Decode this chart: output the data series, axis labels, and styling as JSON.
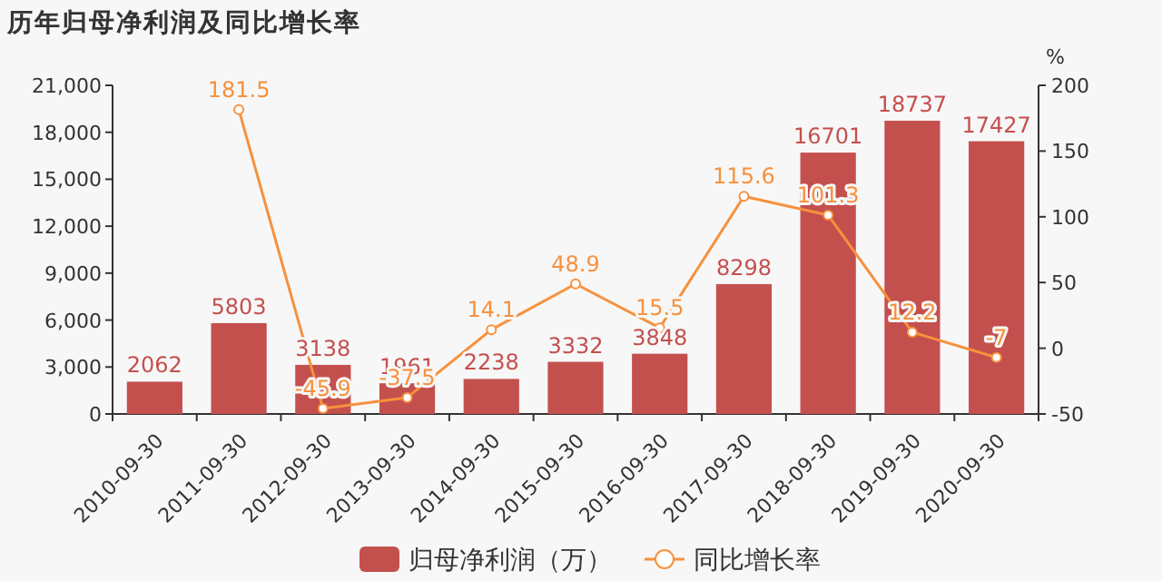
{
  "chart_data": {
    "type": "bar",
    "title": "历年归母净利润及同比增长率",
    "y2label": "%",
    "categories": [
      "2010-09-30",
      "2011-09-30",
      "2012-09-30",
      "2013-09-30",
      "2014-09-30",
      "2015-09-30",
      "2016-09-30",
      "2017-09-30",
      "2018-09-30",
      "2019-09-30",
      "2020-09-30"
    ],
    "series": [
      {
        "name": "归母净利润（万）",
        "color": "#c4504e",
        "values": [
          2062,
          5803,
          3138,
          1961,
          2238,
          3332,
          3848,
          8298,
          16701,
          18737,
          17427
        ]
      },
      {
        "name": "同比增长率",
        "type": "line",
        "axis": "y2",
        "color": "#f7913d",
        "marker": "circle",
        "values": [
          null,
          181.5,
          -45.9,
          -37.5,
          14.1,
          48.9,
          15.5,
          115.6,
          101.3,
          12.2,
          -7
        ]
      }
    ],
    "ylim": [
      0,
      21000
    ],
    "yticks": [
      {
        "value": 0,
        "label": "0"
      },
      {
        "value": 3000,
        "label": "3,000"
      },
      {
        "value": 6000,
        "label": "6,000"
      },
      {
        "value": 9000,
        "label": "9,000"
      },
      {
        "value": 12000,
        "label": "12,000"
      },
      {
        "value": 15000,
        "label": "15,000"
      },
      {
        "value": 18000,
        "label": "18,000"
      },
      {
        "value": 21000,
        "label": "21,000"
      }
    ],
    "y2lim": [
      -50,
      200
    ],
    "y2ticks": [
      -50,
      0,
      50,
      100,
      150,
      200
    ],
    "data_labels": true,
    "legend": "bottom",
    "grid": false
  }
}
